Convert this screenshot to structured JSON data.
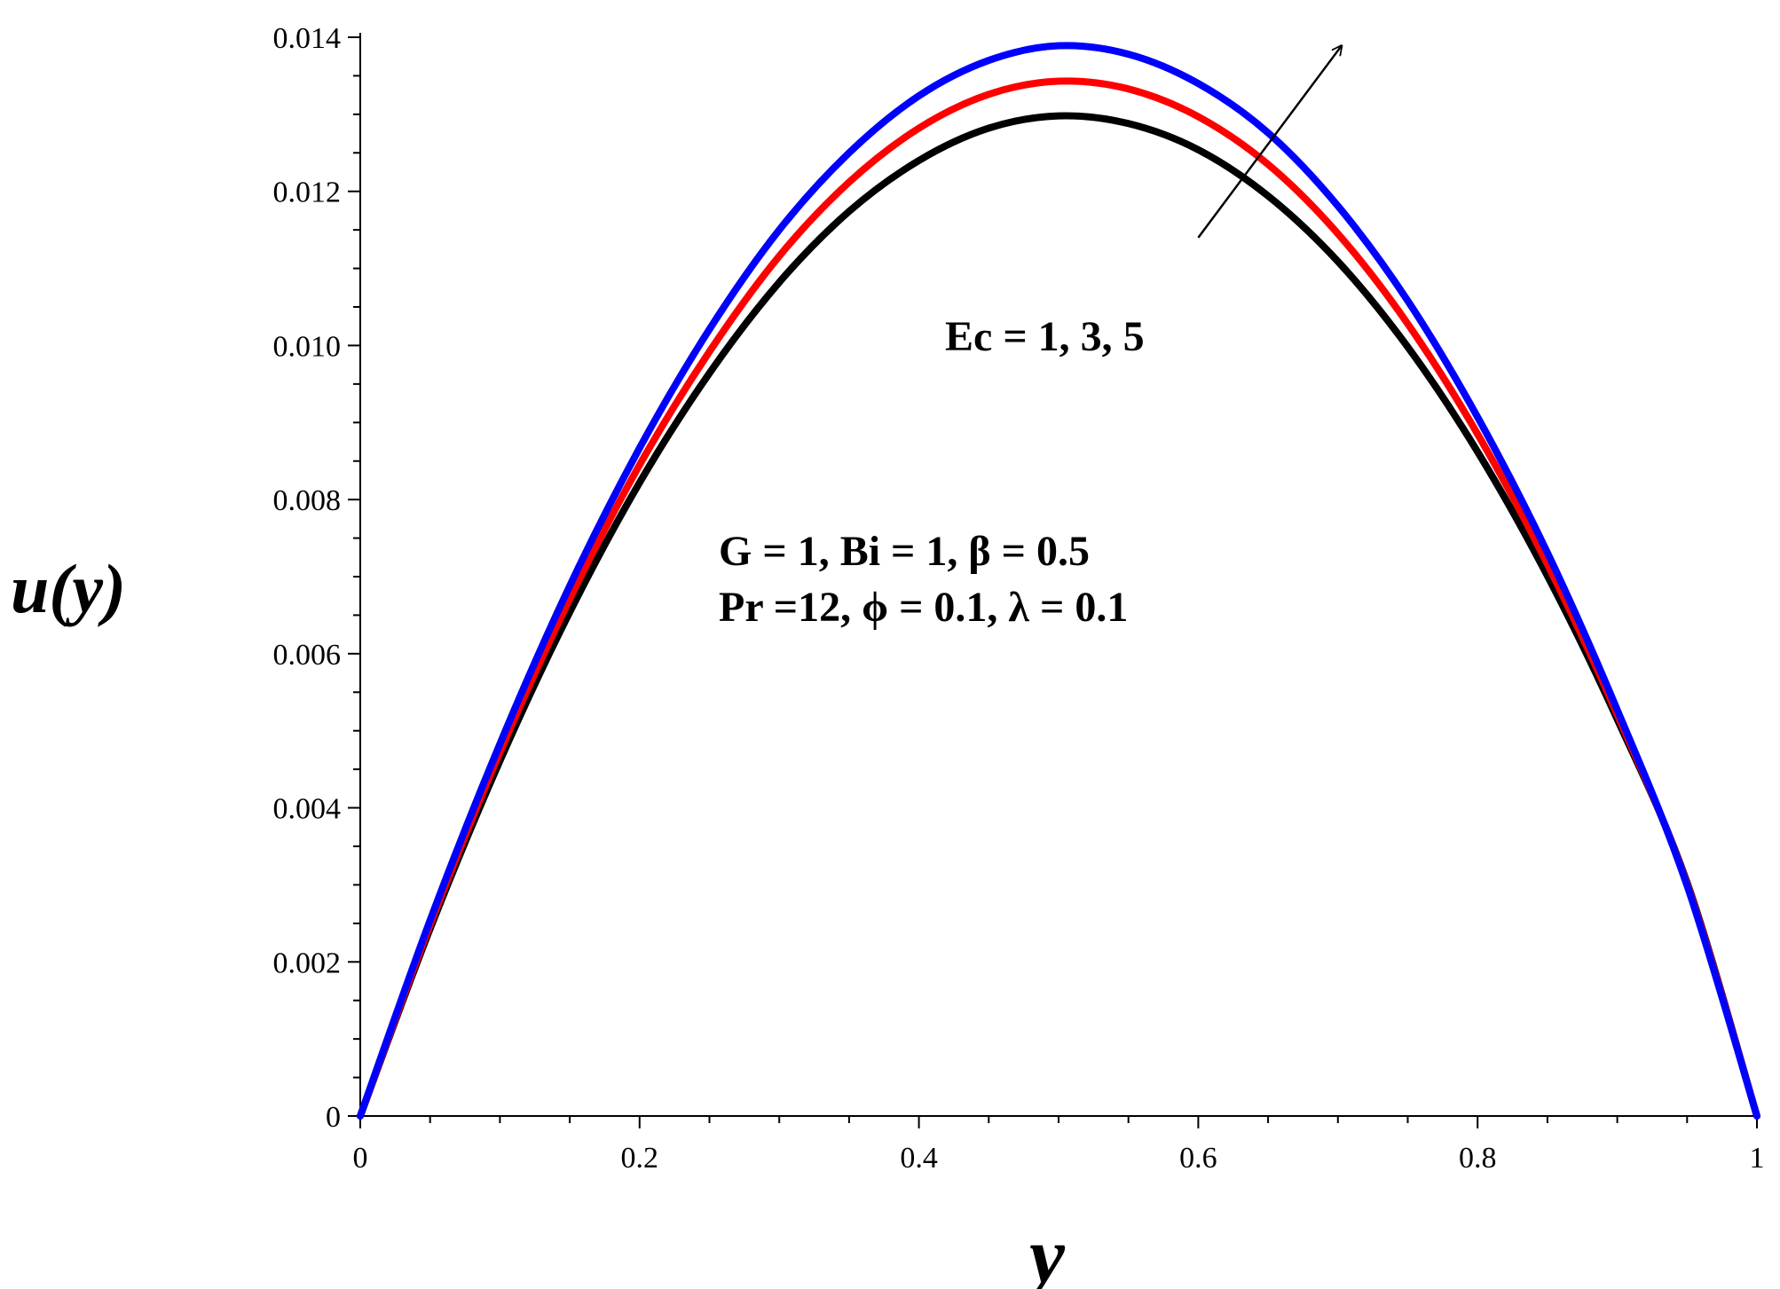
{
  "chart_data": {
    "type": "line",
    "title": "",
    "xlabel": "y",
    "ylabel": "u(y)",
    "xlim": [
      0,
      1
    ],
    "ylim": [
      0,
      0.014
    ],
    "xticks": [
      0,
      0.2,
      0.4,
      0.6,
      0.8,
      1
    ],
    "xtick_labels": [
      "0",
      "0.2",
      "0.4",
      "0.6",
      "0.8",
      "1"
    ],
    "yticks": [
      0,
      0.002,
      0.004,
      0.006,
      0.008,
      0.01,
      0.012,
      0.014
    ],
    "ytick_labels": [
      "0",
      "0.002",
      "0.004",
      "0.006",
      "0.008",
      "0.010",
      "0.012",
      "0.014"
    ],
    "grid": false,
    "legend": null,
    "series": [
      {
        "color": "#000000",
        "x": [
          0,
          0.05,
          0.1,
          0.15,
          0.2,
          0.25,
          0.3,
          0.35,
          0.4,
          0.45,
          0.5,
          0.55,
          0.6,
          0.65,
          0.7,
          0.75,
          0.8,
          0.85,
          0.9,
          0.95,
          1
        ],
        "y": [
          0,
          0.00243,
          0.00461,
          0.00654,
          0.00822,
          0.00964,
          0.01082,
          0.01174,
          0.0124,
          0.01282,
          0.01298,
          0.01288,
          0.01254,
          0.01194,
          0.01109,
          0.00998,
          0.00862,
          0.00701,
          0.00515,
          0.00303,
          0
        ]
      },
      {
        "color": "#ff0000",
        "x": [
          0,
          0.05,
          0.1,
          0.15,
          0.2,
          0.25,
          0.3,
          0.35,
          0.4,
          0.45,
          0.5,
          0.55,
          0.6,
          0.65,
          0.7,
          0.75,
          0.8,
          0.85,
          0.9,
          0.95,
          1
        ],
        "y": [
          0,
          0.00248,
          0.00472,
          0.00671,
          0.00845,
          0.00992,
          0.01116,
          0.01212,
          0.01282,
          0.01326,
          0.01343,
          0.01333,
          0.01297,
          0.01235,
          0.01145,
          0.01028,
          0.00885,
          0.00716,
          0.00521,
          0.00301,
          0
        ]
      },
      {
        "color": "#0000ff",
        "x": [
          0,
          0.05,
          0.1,
          0.15,
          0.2,
          0.25,
          0.3,
          0.35,
          0.4,
          0.45,
          0.5,
          0.55,
          0.6,
          0.65,
          0.7,
          0.75,
          0.8,
          0.85,
          0.9,
          0.95,
          1
        ],
        "y": [
          0,
          0.00254,
          0.00483,
          0.00688,
          0.00867,
          0.01021,
          0.0115,
          0.0125,
          0.01324,
          0.0137,
          0.01389,
          0.01378,
          0.0134,
          0.01276,
          0.01181,
          0.01058,
          0.00907,
          0.00731,
          0.00527,
          0.00299,
          0
        ]
      }
    ],
    "annotations": {
      "ec": "Ec = 1, 3, 5",
      "params_line1": "G = 1, Bi = 1, β = 0.5",
      "params_line2": "Pr =12, ϕ = 0.1, λ = 0.1"
    },
    "arrow": {
      "from": [
        0.6,
        0.0114
      ],
      "to": [
        0.703,
        0.0139
      ]
    }
  }
}
